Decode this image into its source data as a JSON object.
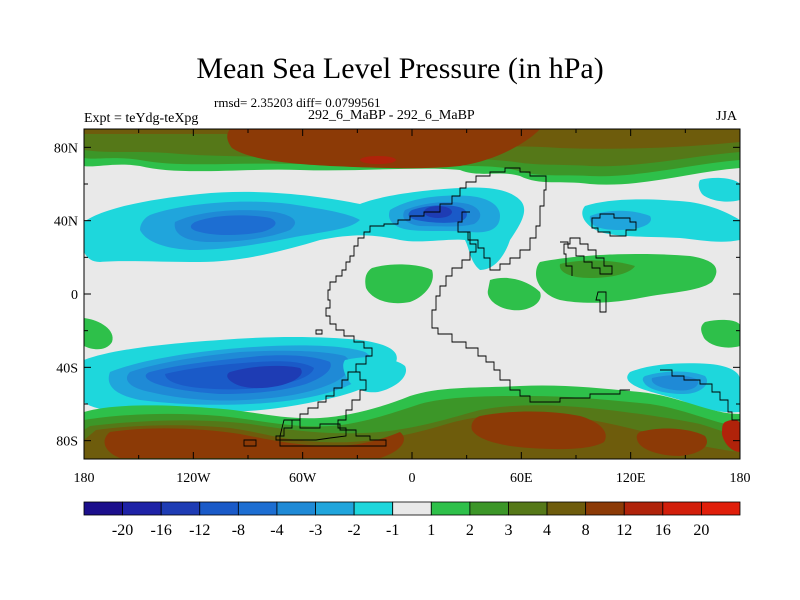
{
  "title": "Mean Sea Level Pressure (in hPa)",
  "stats": "rmsd= 2.35203 diff= 0.0799561",
  "experiment": "Expt = teYdg-teXpg",
  "comparison": "292_6_MaBP - 292_6_MaBP",
  "season": "JJA",
  "lon_labels": [
    "180",
    "120W",
    "60W",
    "0",
    "60E",
    "120E",
    "180"
  ],
  "lat_labels": [
    "80N",
    "40N",
    "0",
    "40S",
    "80S"
  ],
  "colorbar": {
    "labels": [
      "-20",
      "-16",
      "-12",
      "-8",
      "-4",
      "-3",
      "-2",
      "-1",
      "1",
      "2",
      "3",
      "4",
      "8",
      "12",
      "16",
      "20"
    ],
    "colors": [
      "#1c0f8c",
      "#1e22a6",
      "#1e3cb4",
      "#1a5ac8",
      "#1d6ed2",
      "#1f8ad6",
      "#20a5dc",
      "#1ed7dc",
      "#e9e9e9",
      "#2ec04a",
      "#3c9628",
      "#557818",
      "#6e5c0c",
      "#8c3a06",
      "#b0230a",
      "#d21e0a",
      "#e01e0a"
    ]
  }
}
